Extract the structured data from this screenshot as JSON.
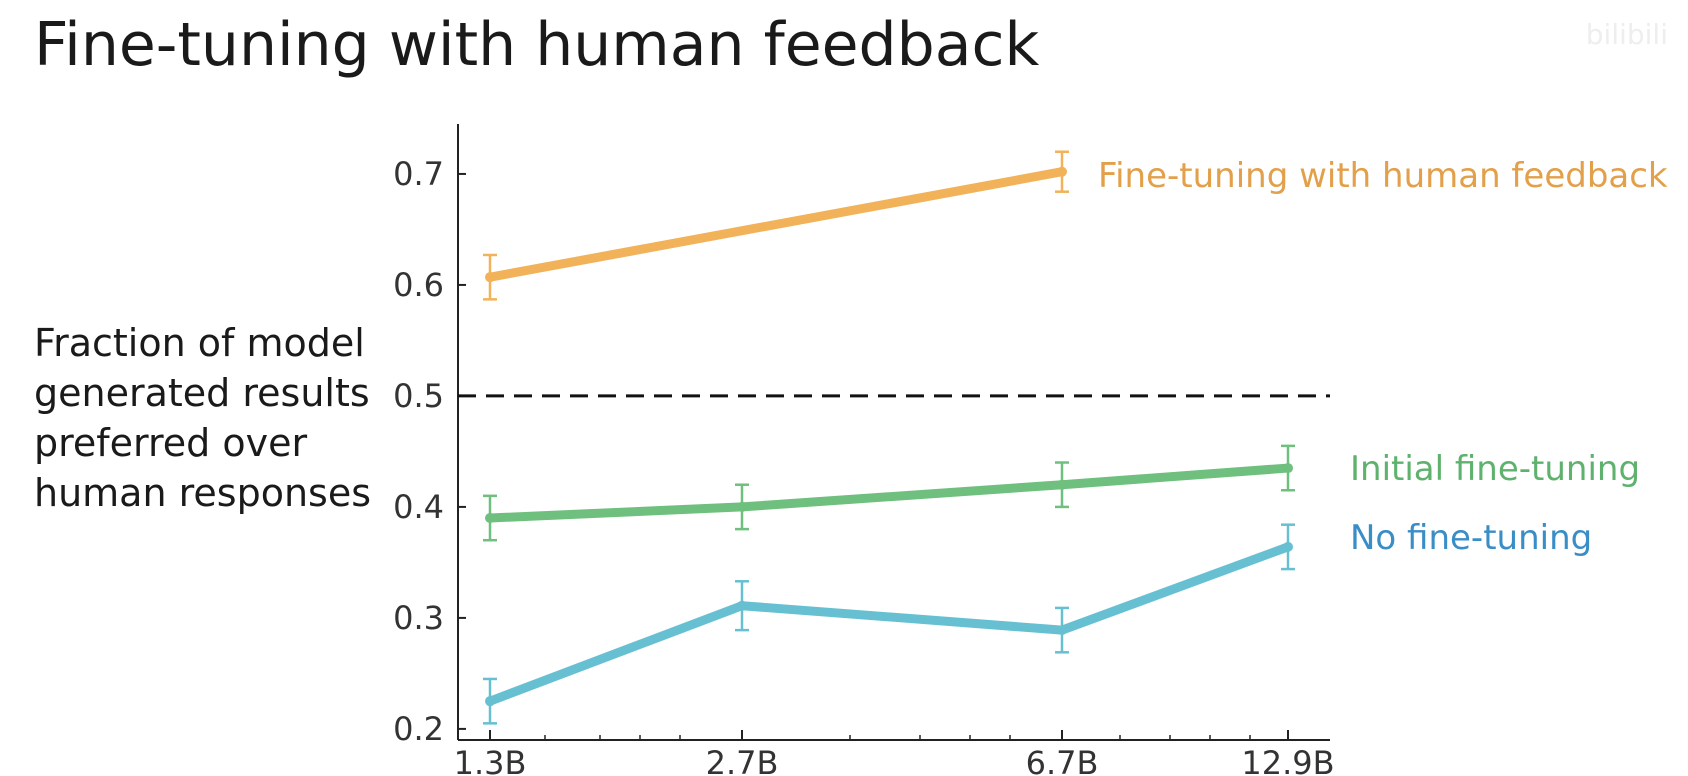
{
  "title": "Fine-tuning with human feedback",
  "watermark": "bilibili",
  "chart_data": {
    "type": "line",
    "ylabel_lines": [
      "Fraction of model",
      "generated results",
      "preferred over",
      "human responses"
    ],
    "xlabel": "",
    "categories": [
      "1.3B",
      "2.7B",
      "6.7B",
      "12.9B"
    ],
    "ylim": [
      0.19,
      0.745
    ],
    "yticks": [
      0.2,
      0.3,
      0.4,
      0.5,
      0.6,
      0.7
    ],
    "yticklabels": [
      "0.2",
      "0.3",
      "0.4",
      "0.5",
      "0.6",
      "0.7"
    ],
    "reference_line": {
      "y": 0.5,
      "style": "dashed",
      "color": "#111111"
    },
    "grid": false,
    "legend": "inline-right",
    "series": [
      {
        "name": "Fine-tuning with human feedback",
        "color": "#f2b25a",
        "label_color": "#e3a04a",
        "points": [
          {
            "x": "1.3B",
            "y": 0.607,
            "err": 0.02
          },
          {
            "x": "6.7B",
            "y": 0.702,
            "err": 0.018
          }
        ]
      },
      {
        "name": "Initial fine-tuning",
        "color": "#6fbf7e",
        "label_color": "#5fb26e",
        "points": [
          {
            "x": "1.3B",
            "y": 0.39,
            "err": 0.02
          },
          {
            "x": "2.7B",
            "y": 0.4,
            "err": 0.02
          },
          {
            "x": "6.7B",
            "y": 0.42,
            "err": 0.02
          },
          {
            "x": "12.9B",
            "y": 0.435,
            "err": 0.02
          }
        ]
      },
      {
        "name": "No fine-tuning",
        "color": "#67c0d2",
        "label_color": "#3a8ec8",
        "points": [
          {
            "x": "1.3B",
            "y": 0.225,
            "err": 0.02
          },
          {
            "x": "2.7B",
            "y": 0.311,
            "err": 0.022
          },
          {
            "x": "6.7B",
            "y": 0.289,
            "err": 0.02
          },
          {
            "x": "12.9B",
            "y": 0.364,
            "err": 0.02
          }
        ]
      }
    ]
  }
}
